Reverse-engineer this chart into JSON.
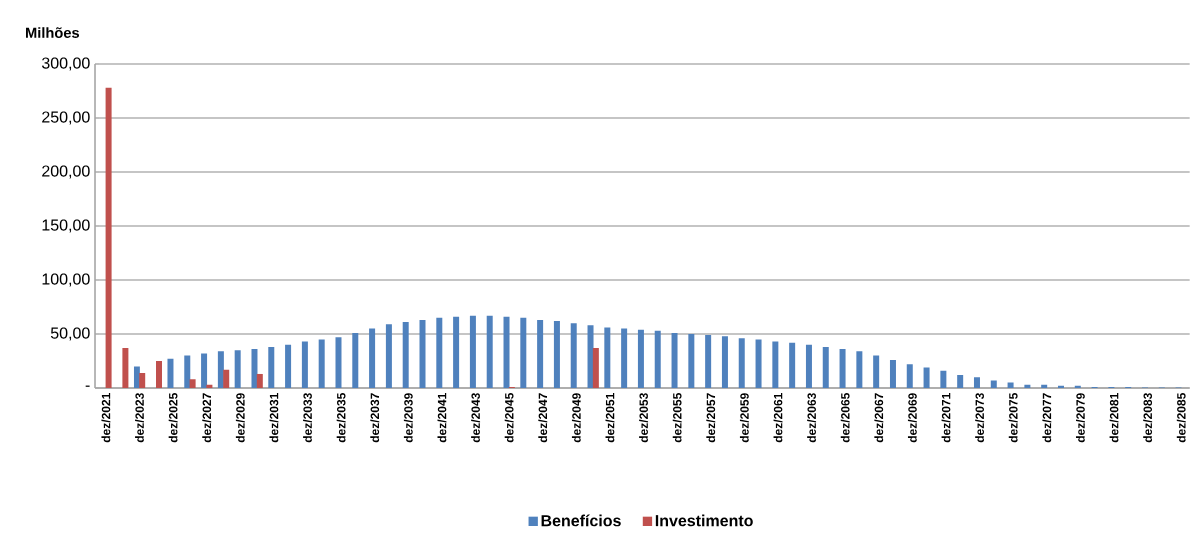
{
  "chart_data": {
    "type": "bar",
    "ylabel": "Milhões",
    "categories": [
      "dez/2021",
      null,
      "dez/2023",
      null,
      "dez/2025",
      null,
      "dez/2027",
      null,
      "dez/2029",
      null,
      "dez/2031",
      null,
      "dez/2033",
      null,
      "dez/2035",
      null,
      "dez/2037",
      null,
      "dez/2039",
      null,
      "dez/2041",
      null,
      "dez/2043",
      null,
      "dez/2045",
      null,
      "dez/2047",
      null,
      "dez/2049",
      null,
      "dez/2051",
      null,
      "dez/2053",
      null,
      "dez/2055",
      null,
      "dez/2057",
      null,
      "dez/2059",
      null,
      "dez/2061",
      null,
      "dez/2063",
      null,
      "dez/2065",
      null,
      "dez/2067",
      null,
      "dez/2069",
      null,
      "dez/2071",
      null,
      "dez/2073",
      null,
      "dez/2075",
      null,
      "dez/2077",
      null,
      "dez/2079",
      null,
      "dez/2081",
      null,
      "dez/2083",
      null,
      "dez/2085"
    ],
    "series": [
      {
        "name": "Benefícios",
        "color": "#4f81bd",
        "values": [
          null,
          null,
          20,
          null,
          27,
          30,
          32,
          34,
          35,
          36,
          38,
          40,
          43,
          45,
          47,
          51,
          55,
          59,
          61,
          63,
          65,
          66,
          67,
          67,
          66,
          65,
          63,
          62,
          60,
          58,
          56,
          55,
          54,
          53,
          51,
          50,
          49,
          48,
          46,
          45,
          43,
          42,
          40,
          38,
          36,
          34,
          30,
          26,
          22,
          19,
          16,
          12,
          10,
          7,
          5,
          3,
          3,
          2,
          2,
          1,
          1,
          1,
          0.5,
          0.5,
          0.5
        ]
      },
      {
        "name": "Investimento",
        "color": "#c0504d",
        "values": [
          278,
          37,
          14,
          25,
          null,
          8,
          3,
          17,
          null,
          13,
          null,
          null,
          null,
          null,
          null,
          null,
          null,
          null,
          null,
          null,
          null,
          null,
          null,
          null,
          1,
          null,
          null,
          null,
          null,
          37,
          null,
          null,
          null,
          null,
          null,
          null,
          null,
          null,
          null,
          null,
          null,
          null,
          null,
          null,
          null,
          null,
          null,
          null,
          null,
          null,
          null,
          null,
          null,
          null,
          null,
          null,
          null,
          null,
          null,
          null,
          null,
          null,
          null,
          null,
          null
        ]
      }
    ],
    "ylim": [
      0,
      300
    ],
    "yticks": [
      {
        "value": 0,
        "label": "-"
      },
      {
        "value": 50,
        "label": "50,00"
      },
      {
        "value": 100,
        "label": "100,00"
      },
      {
        "value": 150,
        "label": "150,00"
      },
      {
        "value": 200,
        "label": "200,00"
      },
      {
        "value": 250,
        "label": "250,00"
      },
      {
        "value": 300,
        "label": "300,00"
      }
    ],
    "grid": "y",
    "legend": "bottom"
  }
}
